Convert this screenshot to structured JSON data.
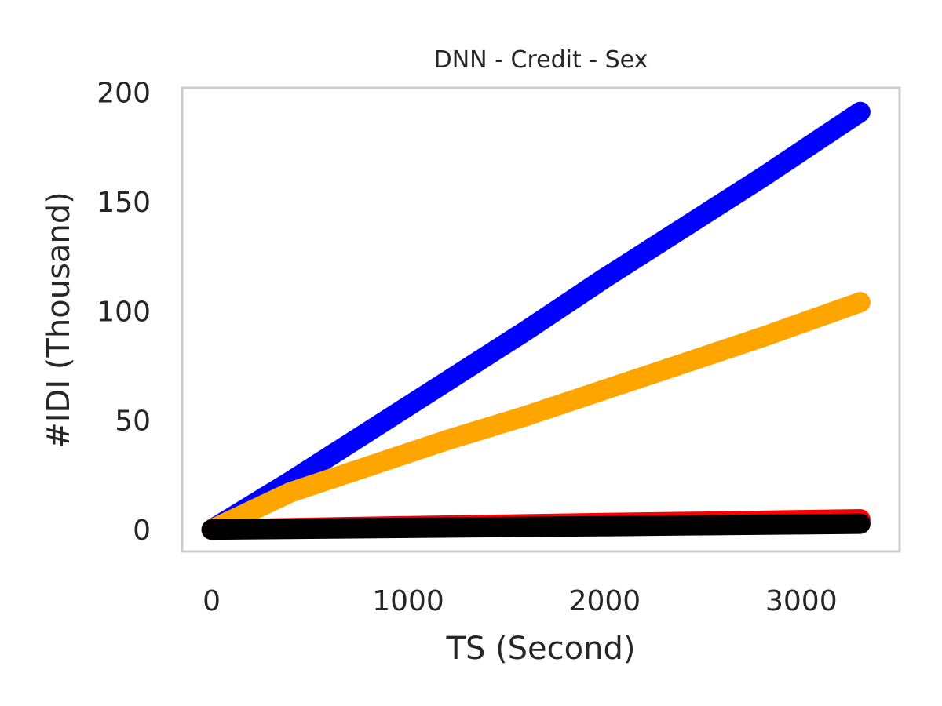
{
  "chart_data": {
    "type": "line",
    "title": "DNN - Credit - Sex",
    "xlabel": "TS (Second)",
    "ylabel": "#IDI (Thousand)",
    "xlim": [
      -150,
      3500
    ],
    "ylim": [
      -10,
      202
    ],
    "xticks": [
      0,
      1000,
      2000,
      3000
    ],
    "yticks": [
      0,
      50,
      100,
      150,
      200
    ],
    "grid": false,
    "frame_color": "#cccccc",
    "series": [
      {
        "color": "#0000ff",
        "x": [
          0,
          400,
          800,
          1200,
          1600,
          2000,
          2400,
          2800,
          3300
        ],
        "y": [
          0,
          22,
          45,
          68,
          91,
          115,
          138,
          161,
          191
        ]
      },
      {
        "color": "#ffa500",
        "x": [
          0,
          400,
          800,
          1200,
          1600,
          2000,
          2400,
          2800,
          3300
        ],
        "y": [
          0,
          17,
          29,
          41,
          52,
          64,
          76,
          88,
          104
        ]
      },
      {
        "color": "#ff0000",
        "x": [
          0,
          500,
          1000,
          1500,
          2000,
          2500,
          3000,
          3300
        ],
        "y": [
          0,
          0.8,
          1.6,
          2.3,
          3.0,
          3.6,
          4.3,
          4.7
        ]
      },
      {
        "color": "#008000",
        "x": [
          0,
          500,
          1000,
          1500,
          2000,
          2500,
          3000,
          3300
        ],
        "y": [
          0,
          0.2,
          0.4,
          0.6,
          0.8,
          1.0,
          1.2,
          1.4
        ]
      },
      {
        "color": "#000000",
        "x": [
          0,
          500,
          1000,
          1500,
          2000,
          2500,
          3000,
          3300
        ],
        "y": [
          0,
          0.4,
          0.8,
          1.2,
          1.6,
          2.0,
          2.4,
          2.7
        ]
      }
    ]
  }
}
